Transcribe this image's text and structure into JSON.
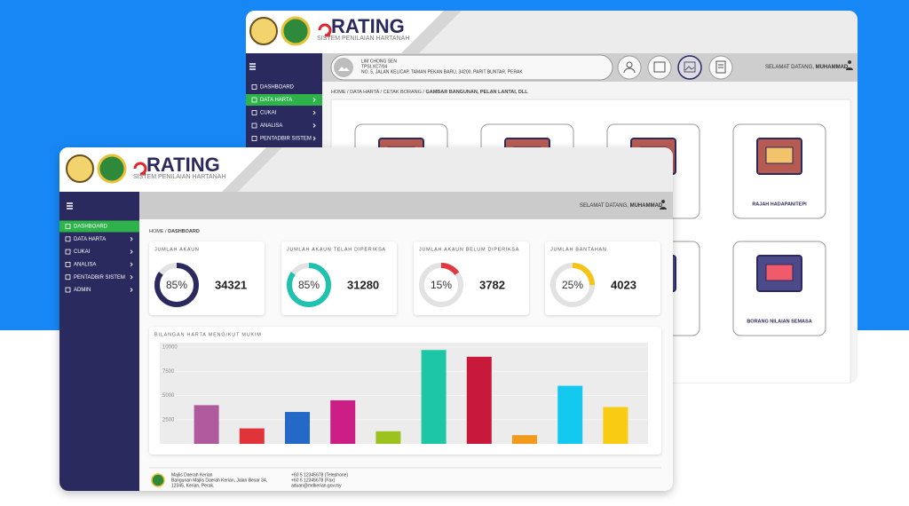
{
  "back_window": {
    "logo_title": "RATING",
    "logo_subtitle": "SISTEM PENILAIAN HARTANAH",
    "menu": [
      "DASHBOARD",
      "DATA HARTA",
      "CUKAI",
      "ANALISA",
      "PENTADBIR SISTEM"
    ],
    "profile": {
      "name": "LIM CHONG SEN",
      "id": "TPSI.XC7/04",
      "address": "NO. 5, JALAN KELICAP, TAMAN PEKAN BARU, 34200, PARIT BUNTAR, PERAK"
    },
    "welcome": "SELAMAT DATANG,",
    "user_name": "MUHAMMAD",
    "breadcrumb": "HOME / DATA HARTA / CETAK BORANG /",
    "breadcrumb_current": "GAMBAR BANGUNAN, PELAN LANTAI, DLL",
    "cards": [
      "RAJAH HADAPAN/TEPI",
      "BORANG NILAIAN SEMASA"
    ]
  },
  "front_window": {
    "logo_title": "RATING",
    "logo_subtitle": "SISTEM PENILAIAN HARTANAH",
    "menu": [
      "DASHBOARD",
      "DATA HARTA",
      "CUKAI",
      "ANALISA",
      "PENTADBIR SISTEM",
      "ADMIN"
    ],
    "welcome": "SELAMAT DATANG,",
    "user_name": "MUHAMMAD",
    "breadcrumb": "HOME /",
    "breadcrumb_current": "DASHBOARD",
    "stats": [
      {
        "title": "JUMLAH AKAUN",
        "percent": 85,
        "percent_label": "85%",
        "value": 34321,
        "color": "#2b2a5e"
      },
      {
        "title": "JUMLAH AKAUN TELAH DIPERIKSA",
        "percent": 85,
        "percent_label": "85%",
        "value": 31280,
        "color": "#1fc2ae"
      },
      {
        "title": "JUMLAH AKAUN BELUM DIPERIKSA",
        "percent": 15,
        "percent_label": "15%",
        "value": 3782,
        "color": "#e0393e"
      },
      {
        "title": "JUMLAH BANTAHAN",
        "percent": 25,
        "percent_label": "25%",
        "value": 4023,
        "color": "#f6c415"
      }
    ],
    "chart": {
      "type": "bar",
      "title": "BILANGAN HARTA MENGIKUT MUKIM",
      "values": [
        4000,
        1600,
        3300,
        4500,
        1300,
        9700,
        9000,
        900,
        6000,
        3800
      ],
      "colors": [
        "#b05a9e",
        "#e0333a",
        "#2468c8",
        "#cc1f86",
        "#9cc21f",
        "#1dc6a4",
        "#c8193a",
        "#f29a1c",
        "#13c8ef",
        "#f8cc12"
      ],
      "ylim": [
        0,
        10000
      ],
      "yticks": [
        2500,
        5000,
        7500,
        10000
      ]
    },
    "footer": {
      "org": "Majlis Daerah Kerian",
      "address_1": "Bangunan Majlis Daerah Kerian, Jalan Besar 34,",
      "address_2": "12345, Kerian, Perak.",
      "phone": "+60 5 12345678 (Telephone)",
      "fax": "+60 5 12345678 (Fax)",
      "email": "aduan@mdkerian.gov.my"
    }
  }
}
